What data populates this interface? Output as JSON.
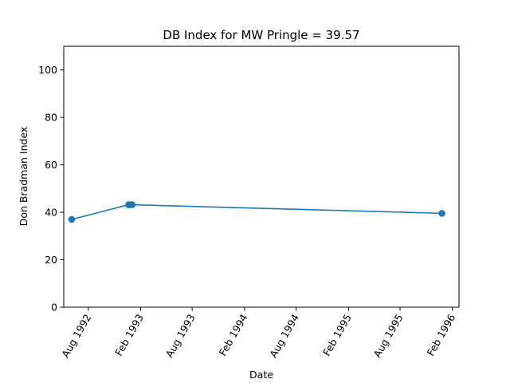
{
  "chart_data": {
    "type": "line",
    "title": "DB Index for MW Pringle = 39.57",
    "xlabel": "Date",
    "ylabel": "Don Bradman Index",
    "ylim": [
      0,
      110
    ],
    "yticks": [
      0,
      20,
      40,
      60,
      80,
      100
    ],
    "xlim": [
      "1992-05-07",
      "1996-02-24"
    ],
    "xticks": [
      {
        "date": "1992-08-01",
        "label": "Aug 1992"
      },
      {
        "date": "1993-02-01",
        "label": "Feb 1993"
      },
      {
        "date": "1993-08-01",
        "label": "Aug 1993"
      },
      {
        "date": "1994-02-01",
        "label": "Feb 1994"
      },
      {
        "date": "1994-08-01",
        "label": "Aug 1994"
      },
      {
        "date": "1995-02-01",
        "label": "Feb 1995"
      },
      {
        "date": "1995-08-01",
        "label": "Aug 1995"
      },
      {
        "date": "1996-02-01",
        "label": "Feb 1996"
      }
    ],
    "series": [
      {
        "color": "#1f77b4",
        "points": [
          {
            "x": "1992-06-04",
            "y": 37.0
          },
          {
            "x": "1992-12-21",
            "y": 43.2
          },
          {
            "x": "1992-12-26",
            "y": 43.2
          },
          {
            "x": "1993-01-02",
            "y": 43.2
          },
          {
            "x": "1995-12-26",
            "y": 39.57
          }
        ]
      }
    ],
    "grid": false,
    "legend": "none"
  }
}
